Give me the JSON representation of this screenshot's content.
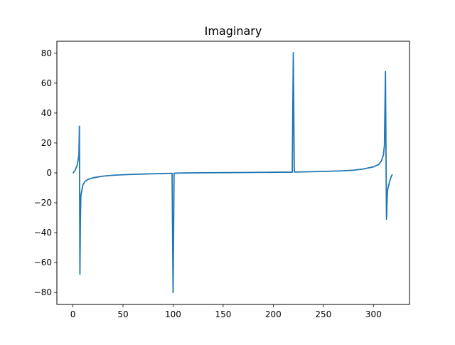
{
  "chart_data": {
    "type": "line",
    "title": "Imaginary",
    "xlabel": "",
    "ylabel": "",
    "xlim": [
      -16,
      336
    ],
    "ylim": [
      -88,
      88
    ],
    "x_ticks": [
      0,
      50,
      100,
      150,
      200,
      250,
      300
    ],
    "x_tick_labels": [
      "0",
      "50",
      "100",
      "150",
      "200",
      "250",
      "300"
    ],
    "y_ticks": [
      -80,
      -60,
      -40,
      -20,
      0,
      20,
      40,
      60,
      80
    ],
    "y_tick_labels": [
      "−80",
      "−60",
      "−40",
      "−20",
      "0",
      "20",
      "40",
      "60",
      "80"
    ],
    "grid": false,
    "legend": "none",
    "series": [
      {
        "color": "#1f77b4",
        "points": [
          [
            0,
            -0.2
          ],
          [
            2,
            1.5
          ],
          [
            4,
            4.5
          ],
          [
            5,
            7.5
          ],
          [
            6,
            12.0
          ],
          [
            6.5,
            31.2
          ],
          [
            7,
            -67.7
          ],
          [
            7.5,
            -30.0
          ],
          [
            8,
            -15.0
          ],
          [
            10,
            -8.0
          ],
          [
            12,
            -5.8
          ],
          [
            15,
            -4.4
          ],
          [
            20,
            -3.3
          ],
          [
            30,
            -2.2
          ],
          [
            40,
            -1.6
          ],
          [
            50,
            -1.25
          ],
          [
            60,
            -1.0
          ],
          [
            70,
            -0.8
          ],
          [
            80,
            -0.6
          ],
          [
            90,
            -0.45
          ],
          [
            99,
            -0.3
          ],
          [
            100,
            -80.0
          ],
          [
            101,
            -0.2
          ],
          [
            110,
            -0.1
          ],
          [
            130,
            0.05
          ],
          [
            150,
            0.15
          ],
          [
            170,
            0.25
          ],
          [
            190,
            0.35
          ],
          [
            210,
            0.45
          ],
          [
            219,
            0.5
          ],
          [
            220,
            80.4
          ],
          [
            221,
            0.55
          ],
          [
            230,
            0.65
          ],
          [
            250,
            0.95
          ],
          [
            270,
            1.35
          ],
          [
            280,
            1.8
          ],
          [
            290,
            2.6
          ],
          [
            300,
            4.0
          ],
          [
            305,
            5.5
          ],
          [
            308,
            8.0
          ],
          [
            310,
            12.0
          ],
          [
            311,
            18.5
          ],
          [
            312,
            67.8
          ],
          [
            313,
            -31.0
          ],
          [
            314,
            -12.0
          ],
          [
            316,
            -6.0
          ],
          [
            318,
            -2.0
          ],
          [
            319,
            -1.0
          ]
        ]
      }
    ]
  }
}
